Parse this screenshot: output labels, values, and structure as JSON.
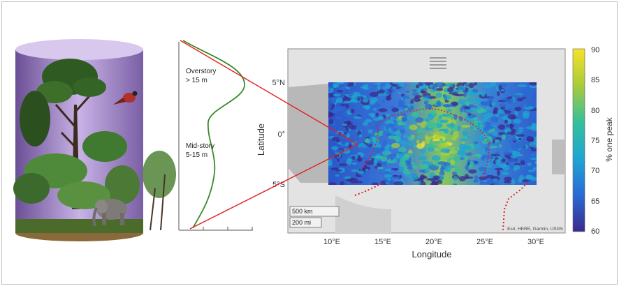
{
  "profile": {
    "overstory_label": [
      "Overstory",
      "> 15 m"
    ],
    "midstory_label": [
      "Mid-story",
      "5-15 m"
    ]
  },
  "map": {
    "y_axis_label": "Latitude",
    "x_axis_label": "Longitude",
    "y_ticks": [
      "5°N",
      "0°",
      "5°S"
    ],
    "x_ticks": [
      "10°E",
      "15°E",
      "20°E",
      "25°E",
      "30°E"
    ],
    "scale_km": "500 km",
    "scale_mi": "200 mi",
    "attribution": "Esri, HERE, Garmin, USGS"
  },
  "colorbar": {
    "label": "% one peak",
    "ticks": [
      "90",
      "85",
      "80",
      "75",
      "70",
      "65",
      "60"
    ],
    "range": [
      60,
      90
    ],
    "colors": [
      "#3b2a8c",
      "#2a6ad6",
      "#1fa6d2",
      "#35c09a",
      "#a9cc3a",
      "#f5e22a"
    ]
  },
  "colors": {
    "connector_lines": "#e02020",
    "profile_curve": "#3a8a2a",
    "boundary_dots": "#e02020"
  }
}
